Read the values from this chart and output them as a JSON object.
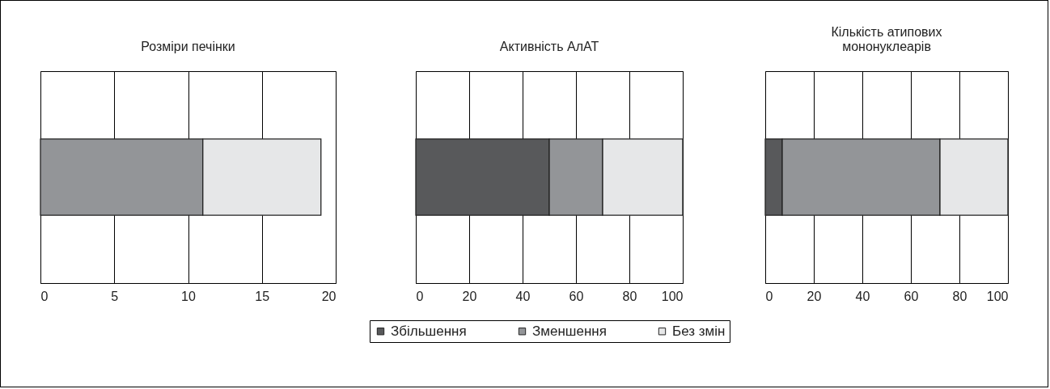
{
  "chart_data": [
    {
      "type": "bar",
      "orientation": "horizontal",
      "stacked": true,
      "title": "Розміри печінки",
      "categories": [
        null
      ],
      "xlim": [
        0,
        20
      ],
      "xticks": [
        0,
        5,
        10,
        15,
        20
      ],
      "grid": "x",
      "series": [
        {
          "color": "#58595b",
          "values": [
            null
          ]
        },
        {
          "color": "#939598",
          "values": [
            11
          ]
        },
        {
          "color": "#e6e7e8",
          "values": [
            8
          ]
        }
      ]
    },
    {
      "type": "bar",
      "orientation": "horizontal",
      "stacked": true,
      "title": "Активність АлАТ",
      "categories": [
        null
      ],
      "xlim": [
        0,
        100
      ],
      "xticks": [
        0,
        20,
        40,
        60,
        80,
        100
      ],
      "grid": "x",
      "legend": "bottom",
      "series": [
        {
          "name": "Збільшення",
          "color": "#58595b",
          "values": [
            50
          ]
        },
        {
          "name": "Зменшення",
          "color": "#939598",
          "values": [
            20
          ]
        },
        {
          "name": "Без змін",
          "color": "#e6e7e8",
          "values": [
            30
          ]
        }
      ]
    },
    {
      "type": "bar",
      "orientation": "horizontal",
      "stacked": true,
      "title": "Кількість атипових мононуклеарів",
      "categories": [
        null
      ],
      "xlim": [
        0,
        100
      ],
      "xticks": [
        0,
        20,
        40,
        60,
        80,
        100
      ],
      "grid": "x",
      "series": [
        {
          "color": "#58595b",
          "values": [
            7
          ]
        },
        {
          "color": "#939598",
          "values": [
            65
          ]
        },
        {
          "color": "#e6e7e8",
          "values": [
            28
          ]
        }
      ]
    }
  ]
}
